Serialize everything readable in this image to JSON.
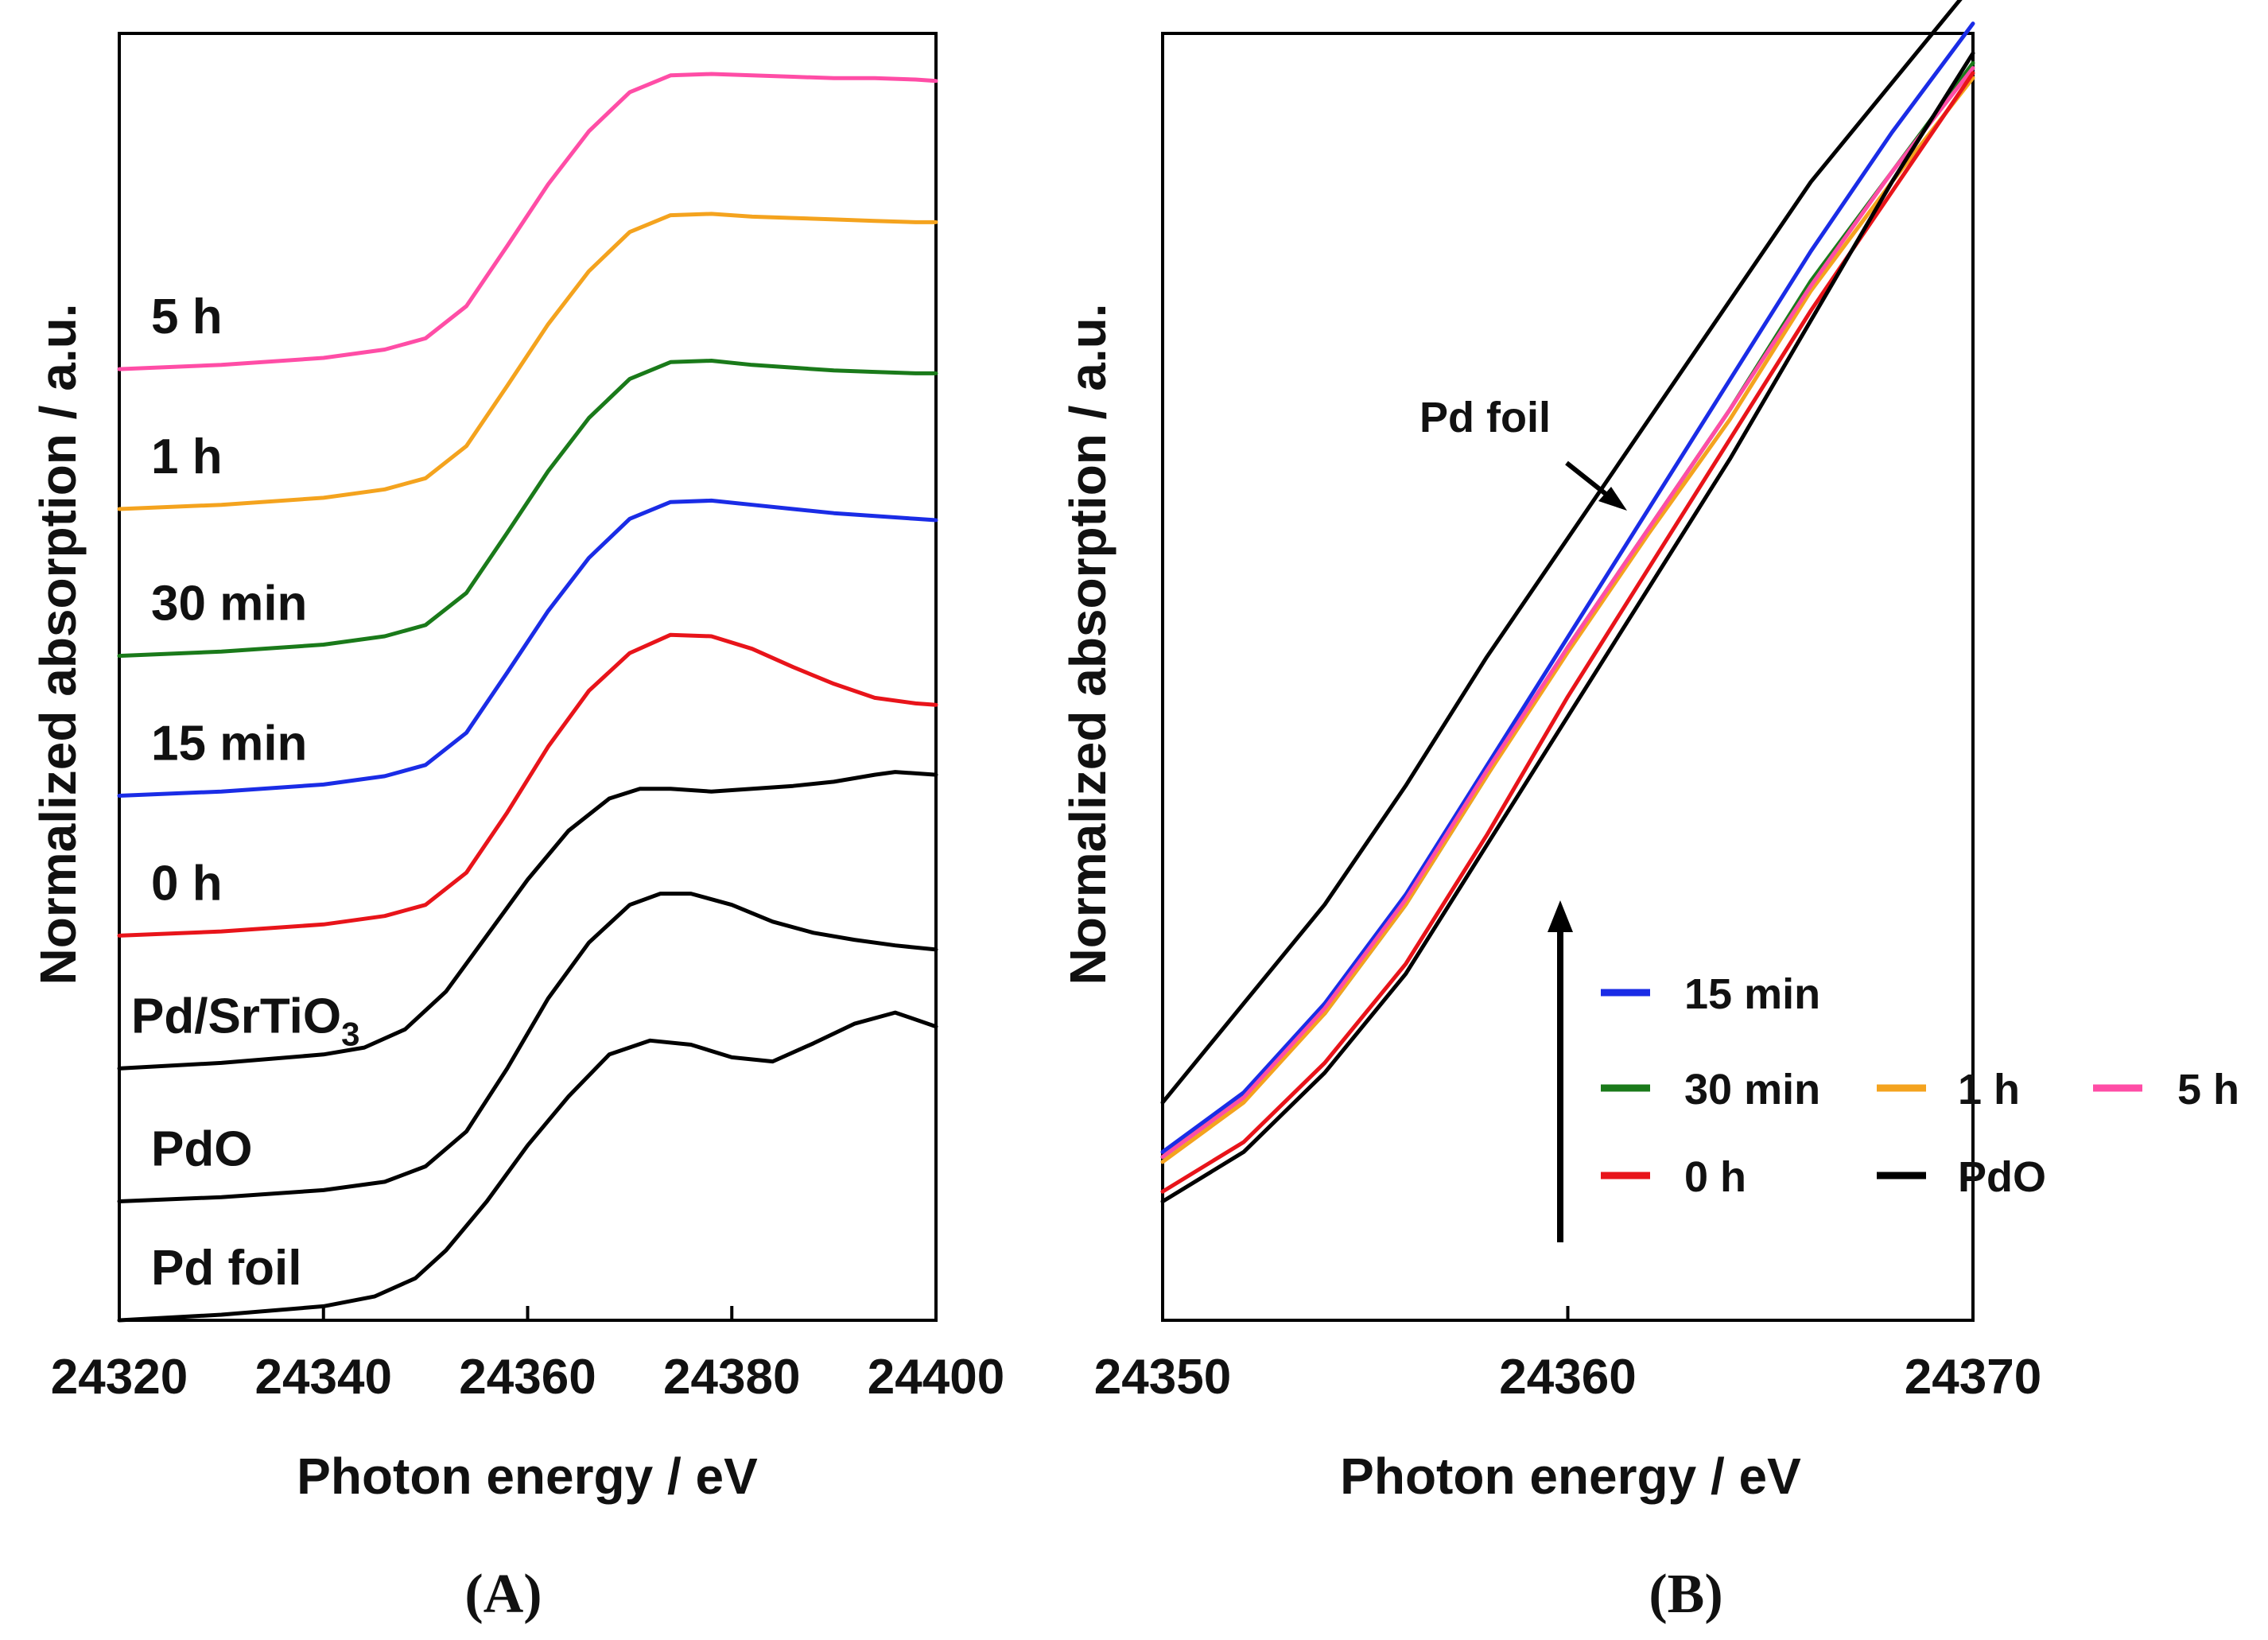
{
  "chart_data": [
    {
      "panel": "A",
      "caption": "(A)",
      "type": "line",
      "xlabel": "Photon energy / eV",
      "ylabel": "Normalized absorption / a.u.",
      "xlim": [
        24320,
        24400
      ],
      "xticks": [
        "24320",
        "24340",
        "24360",
        "24380",
        "24400"
      ],
      "ylim": [
        0,
        9.2
      ],
      "y_ticks_shown": false,
      "grid": false,
      "series": [
        {
          "name": "Pd foil",
          "label": "Pd foil",
          "color": "#000000",
          "offset": 0,
          "x": [
            24320,
            24330,
            24340,
            24345,
            24349,
            24352,
            24356,
            24360,
            24364,
            24368,
            24372,
            24376,
            24380,
            24384,
            24388,
            24392,
            24396,
            24400
          ],
          "y": [
            0,
            0.04,
            0.1,
            0.17,
            0.3,
            0.5,
            0.85,
            1.25,
            1.6,
            1.9,
            2.0,
            1.97,
            1.88,
            1.85,
            1.98,
            2.12,
            2.2,
            2.1
          ]
        },
        {
          "name": "PdO",
          "label": "PdO",
          "color": "#000000",
          "offset": 0.85,
          "x": [
            24320,
            24330,
            24340,
            24346,
            24350,
            24354,
            24358,
            24362,
            24366,
            24370,
            24373,
            24376,
            24380,
            24384,
            24388,
            24392,
            24396,
            24400
          ],
          "y": [
            0,
            0.03,
            0.08,
            0.14,
            0.25,
            0.5,
            0.95,
            1.45,
            1.85,
            2.12,
            2.2,
            2.2,
            2.12,
            2.0,
            1.92,
            1.87,
            1.83,
            1.8
          ]
        },
        {
          "name": "Pd/SrTiO3",
          "label_main": "Pd/SrTiO",
          "label_sub": "3",
          "color": "#000000",
          "offset": 1.8,
          "x": [
            24320,
            24330,
            24340,
            24344,
            24348,
            24352,
            24356,
            24360,
            24364,
            24368,
            24371,
            24374,
            24378,
            24382,
            24386,
            24390,
            24394,
            24396,
            24400
          ],
          "y": [
            0,
            0.04,
            0.1,
            0.15,
            0.28,
            0.55,
            0.95,
            1.35,
            1.7,
            1.93,
            2.0,
            2.0,
            1.98,
            2.0,
            2.02,
            2.05,
            2.1,
            2.12,
            2.1
          ]
        },
        {
          "name": "0 h",
          "label": "0 h",
          "color": "#e8141a",
          "offset": 2.75,
          "x": [
            24320,
            24330,
            24340,
            24346,
            24350,
            24354,
            24358,
            24362,
            24366,
            24370,
            24374,
            24378,
            24382,
            24386,
            24390,
            24394,
            24398,
            24400
          ],
          "y": [
            0,
            0.03,
            0.08,
            0.14,
            0.22,
            0.45,
            0.88,
            1.35,
            1.75,
            2.02,
            2.15,
            2.14,
            2.05,
            1.92,
            1.8,
            1.7,
            1.66,
            1.65
          ]
        },
        {
          "name": "15 min",
          "label": "15 min",
          "color": "#1a2ce6",
          "offset": 3.75,
          "x": [
            24320,
            24330,
            24340,
            24346,
            24350,
            24354,
            24358,
            24362,
            24366,
            24370,
            24374,
            24378,
            24382,
            24386,
            24390,
            24394,
            24398,
            24400
          ],
          "y": [
            0,
            0.03,
            0.08,
            0.14,
            0.22,
            0.45,
            0.88,
            1.32,
            1.7,
            1.98,
            2.1,
            2.11,
            2.08,
            2.05,
            2.02,
            2.0,
            1.98,
            1.97
          ]
        },
        {
          "name": "30 min",
          "label": "30 min",
          "color": "#1a7a1a",
          "offset": 4.75,
          "x": [
            24320,
            24330,
            24340,
            24346,
            24350,
            24354,
            24358,
            24362,
            24366,
            24370,
            24374,
            24378,
            24382,
            24386,
            24390,
            24394,
            24398,
            24400
          ],
          "y": [
            0,
            0.03,
            0.08,
            0.14,
            0.22,
            0.45,
            0.88,
            1.32,
            1.7,
            1.98,
            2.1,
            2.11,
            2.08,
            2.06,
            2.04,
            2.03,
            2.02,
            2.02
          ]
        },
        {
          "name": "1 h",
          "label": "1 h",
          "color": "#f4a31e",
          "offset": 5.8,
          "x": [
            24320,
            24330,
            24340,
            24346,
            24350,
            24354,
            24358,
            24362,
            24366,
            24370,
            24374,
            24378,
            24382,
            24386,
            24390,
            24394,
            24398,
            24400
          ],
          "y": [
            0,
            0.03,
            0.08,
            0.14,
            0.22,
            0.45,
            0.88,
            1.32,
            1.7,
            1.98,
            2.1,
            2.11,
            2.09,
            2.08,
            2.07,
            2.06,
            2.05,
            2.05
          ]
        },
        {
          "name": "5 h",
          "label": "5 h",
          "color": "#ff4da6",
          "offset": 6.8,
          "x": [
            24320,
            24330,
            24340,
            24346,
            24350,
            24354,
            24358,
            24362,
            24366,
            24370,
            24374,
            24378,
            24382,
            24386,
            24390,
            24394,
            24398,
            24400
          ],
          "y": [
            0,
            0.03,
            0.08,
            0.14,
            0.22,
            0.45,
            0.88,
            1.32,
            1.7,
            1.98,
            2.1,
            2.11,
            2.1,
            2.09,
            2.08,
            2.08,
            2.07,
            2.06
          ]
        }
      ]
    },
    {
      "panel": "B",
      "caption": "(B)",
      "type": "line",
      "xlabel": "Photon energy / eV",
      "ylabel": "Normalized absorption / a.u.",
      "xlim": [
        24350,
        24370
      ],
      "xticks": [
        "24350",
        "24360",
        "24370"
      ],
      "ylim": [
        0.2,
        1.5
      ],
      "y_ticks_shown": false,
      "grid": false,
      "annotation": "Pd foil",
      "series": [
        {
          "name": "Pd foil",
          "color": "#000000",
          "in_legend": false,
          "x": [
            24350,
            24352,
            24354,
            24356,
            24358,
            24360,
            24362,
            24364,
            24366,
            24368,
            24370
          ],
          "y": [
            0.42,
            0.52,
            0.62,
            0.74,
            0.87,
            0.99,
            1.11,
            1.23,
            1.35,
            1.45,
            1.55
          ]
        },
        {
          "name": "15 min",
          "color": "#1a2ce6",
          "x": [
            24350,
            24352,
            24354,
            24356,
            24358,
            24360,
            24362,
            24364,
            24366,
            24368,
            24370
          ],
          "y": [
            0.37,
            0.43,
            0.52,
            0.63,
            0.76,
            0.89,
            1.02,
            1.15,
            1.28,
            1.4,
            1.51
          ]
        },
        {
          "name": "30 min",
          "color": "#1a7a1a",
          "x": [
            24350,
            24352,
            24354,
            24356,
            24358,
            24360,
            24362,
            24364,
            24366,
            24368,
            24370
          ],
          "y": [
            0.365,
            0.425,
            0.51,
            0.62,
            0.75,
            0.88,
            1.0,
            1.12,
            1.25,
            1.36,
            1.47
          ]
        },
        {
          "name": "1 h",
          "color": "#f4a31e",
          "x": [
            24350,
            24352,
            24354,
            24356,
            24358,
            24360,
            24362,
            24364,
            24366,
            24368,
            24370
          ],
          "y": [
            0.36,
            0.42,
            0.51,
            0.62,
            0.75,
            0.875,
            0.995,
            1.11,
            1.24,
            1.35,
            1.455
          ]
        },
        {
          "name": "5 h",
          "color": "#ff4da6",
          "x": [
            24350,
            24352,
            24354,
            24356,
            24358,
            24360,
            24362,
            24364,
            24366,
            24368,
            24370
          ],
          "y": [
            0.365,
            0.425,
            0.515,
            0.625,
            0.755,
            0.88,
            1.0,
            1.12,
            1.245,
            1.36,
            1.465
          ]
        },
        {
          "name": "0 h",
          "color": "#e8141a",
          "x": [
            24350,
            24352,
            24354,
            24356,
            24358,
            24360,
            24362,
            24364,
            24366,
            24368,
            24370
          ],
          "y": [
            0.33,
            0.38,
            0.46,
            0.56,
            0.69,
            0.83,
            0.96,
            1.09,
            1.22,
            1.34,
            1.46
          ]
        },
        {
          "name": "PdO",
          "color": "#000000",
          "x": [
            24350,
            24352,
            24354,
            24356,
            24358,
            24360,
            24362,
            24364,
            24366,
            24368,
            24370
          ],
          "y": [
            0.32,
            0.37,
            0.45,
            0.55,
            0.68,
            0.81,
            0.94,
            1.07,
            1.21,
            1.35,
            1.48
          ]
        }
      ]
    }
  ]
}
